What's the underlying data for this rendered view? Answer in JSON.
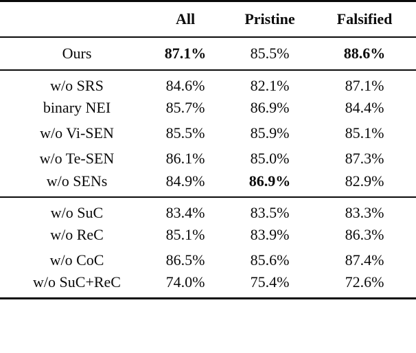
{
  "style": {
    "background": "#ffffff",
    "text_color": "#0a0a0a",
    "rule_color": "#0a0a0a"
  },
  "table": {
    "columns": [
      "",
      "All",
      "Pristine",
      "Falsified"
    ],
    "sections": [
      {
        "name": "ours",
        "rows": [
          {
            "label": "Ours",
            "values": [
              "87.1%",
              "85.5%",
              "88.6%"
            ],
            "bold": [
              true,
              false,
              true
            ]
          }
        ]
      },
      {
        "name": "module-ablations",
        "rows": [
          {
            "label": "w/o SRS",
            "values": [
              "84.6%",
              "82.1%",
              "87.1%"
            ],
            "bold": [
              false,
              false,
              false
            ]
          },
          {
            "label": "binary NEI",
            "values": [
              "85.7%",
              "86.9%",
              "84.4%"
            ],
            "bold": [
              false,
              false,
              false
            ]
          },
          {
            "label": "w/o Vi-SEN",
            "values": [
              "85.5%",
              "85.9%",
              "85.1%"
            ],
            "bold": [
              false,
              false,
              false
            ]
          },
          {
            "label": "w/o Te-SEN",
            "values": [
              "86.1%",
              "85.0%",
              "87.3%"
            ],
            "bold": [
              false,
              false,
              false
            ]
          },
          {
            "label": "w/o SENs",
            "values": [
              "84.9%",
              "86.9%",
              "82.9%"
            ],
            "bold": [
              false,
              true,
              false
            ]
          }
        ]
      },
      {
        "name": "loss-ablations",
        "rows": [
          {
            "label": "w/o SuC",
            "values": [
              "83.4%",
              "83.5%",
              "83.3%"
            ],
            "bold": [
              false,
              false,
              false
            ]
          },
          {
            "label": "w/o ReC",
            "values": [
              "85.1%",
              "83.9%",
              "86.3%"
            ],
            "bold": [
              false,
              false,
              false
            ]
          },
          {
            "label": "w/o CoC",
            "values": [
              "86.5%",
              "85.6%",
              "87.4%"
            ],
            "bold": [
              false,
              false,
              false
            ]
          },
          {
            "label": "w/o SuC+ReC",
            "values": [
              "74.0%",
              "75.4%",
              "72.6%"
            ],
            "bold": [
              false,
              false,
              false
            ]
          }
        ]
      }
    ]
  }
}
